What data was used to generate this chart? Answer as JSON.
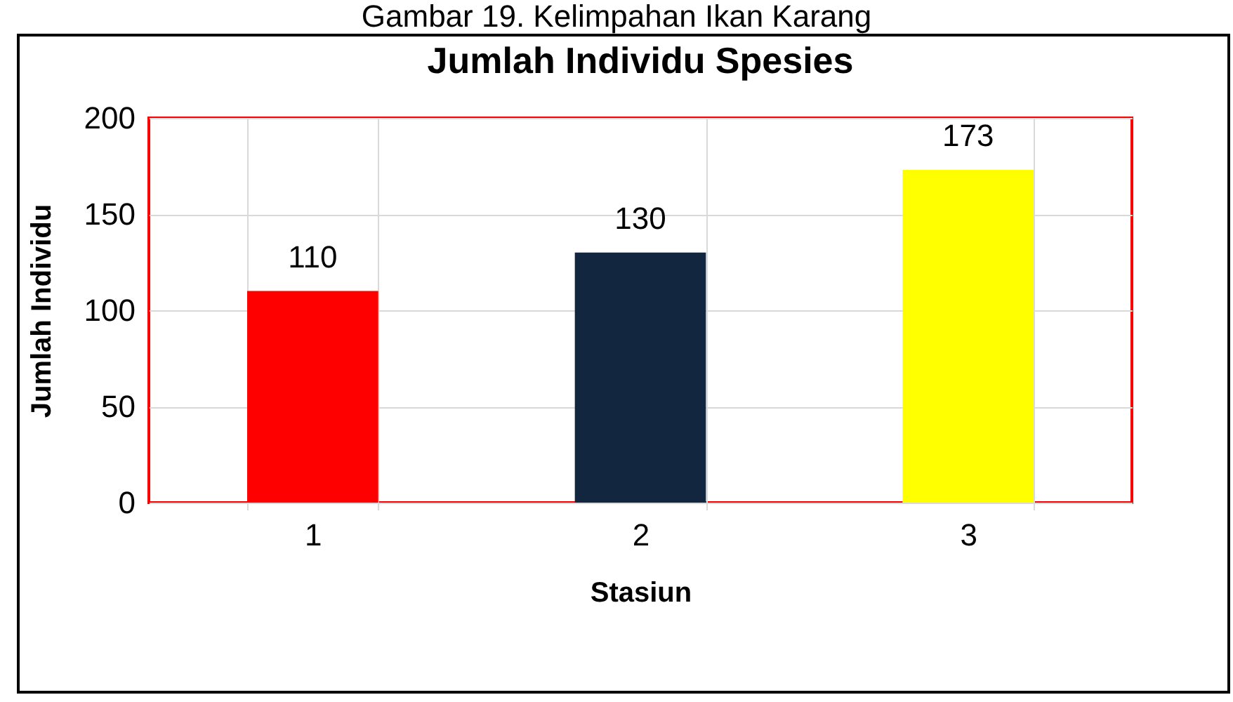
{
  "chart_data": {
    "type": "bar",
    "title": "Jumlah Individu Spesies",
    "xlabel": "Stasiun",
    "ylabel": "Jumlah Individu",
    "annotations": [
      "Gambar 19. Kelimpahan Ikan Karang"
    ],
    "categories": [
      "1",
      "2",
      "3"
    ],
    "values": [
      110,
      130,
      173
    ],
    "colors": [
      "#ff0000",
      "#12263f",
      "#ffff00"
    ],
    "ylim": [
      0,
      200
    ],
    "yticks": [
      0,
      50,
      100,
      150,
      200
    ],
    "grid": true,
    "data_labels": true
  }
}
